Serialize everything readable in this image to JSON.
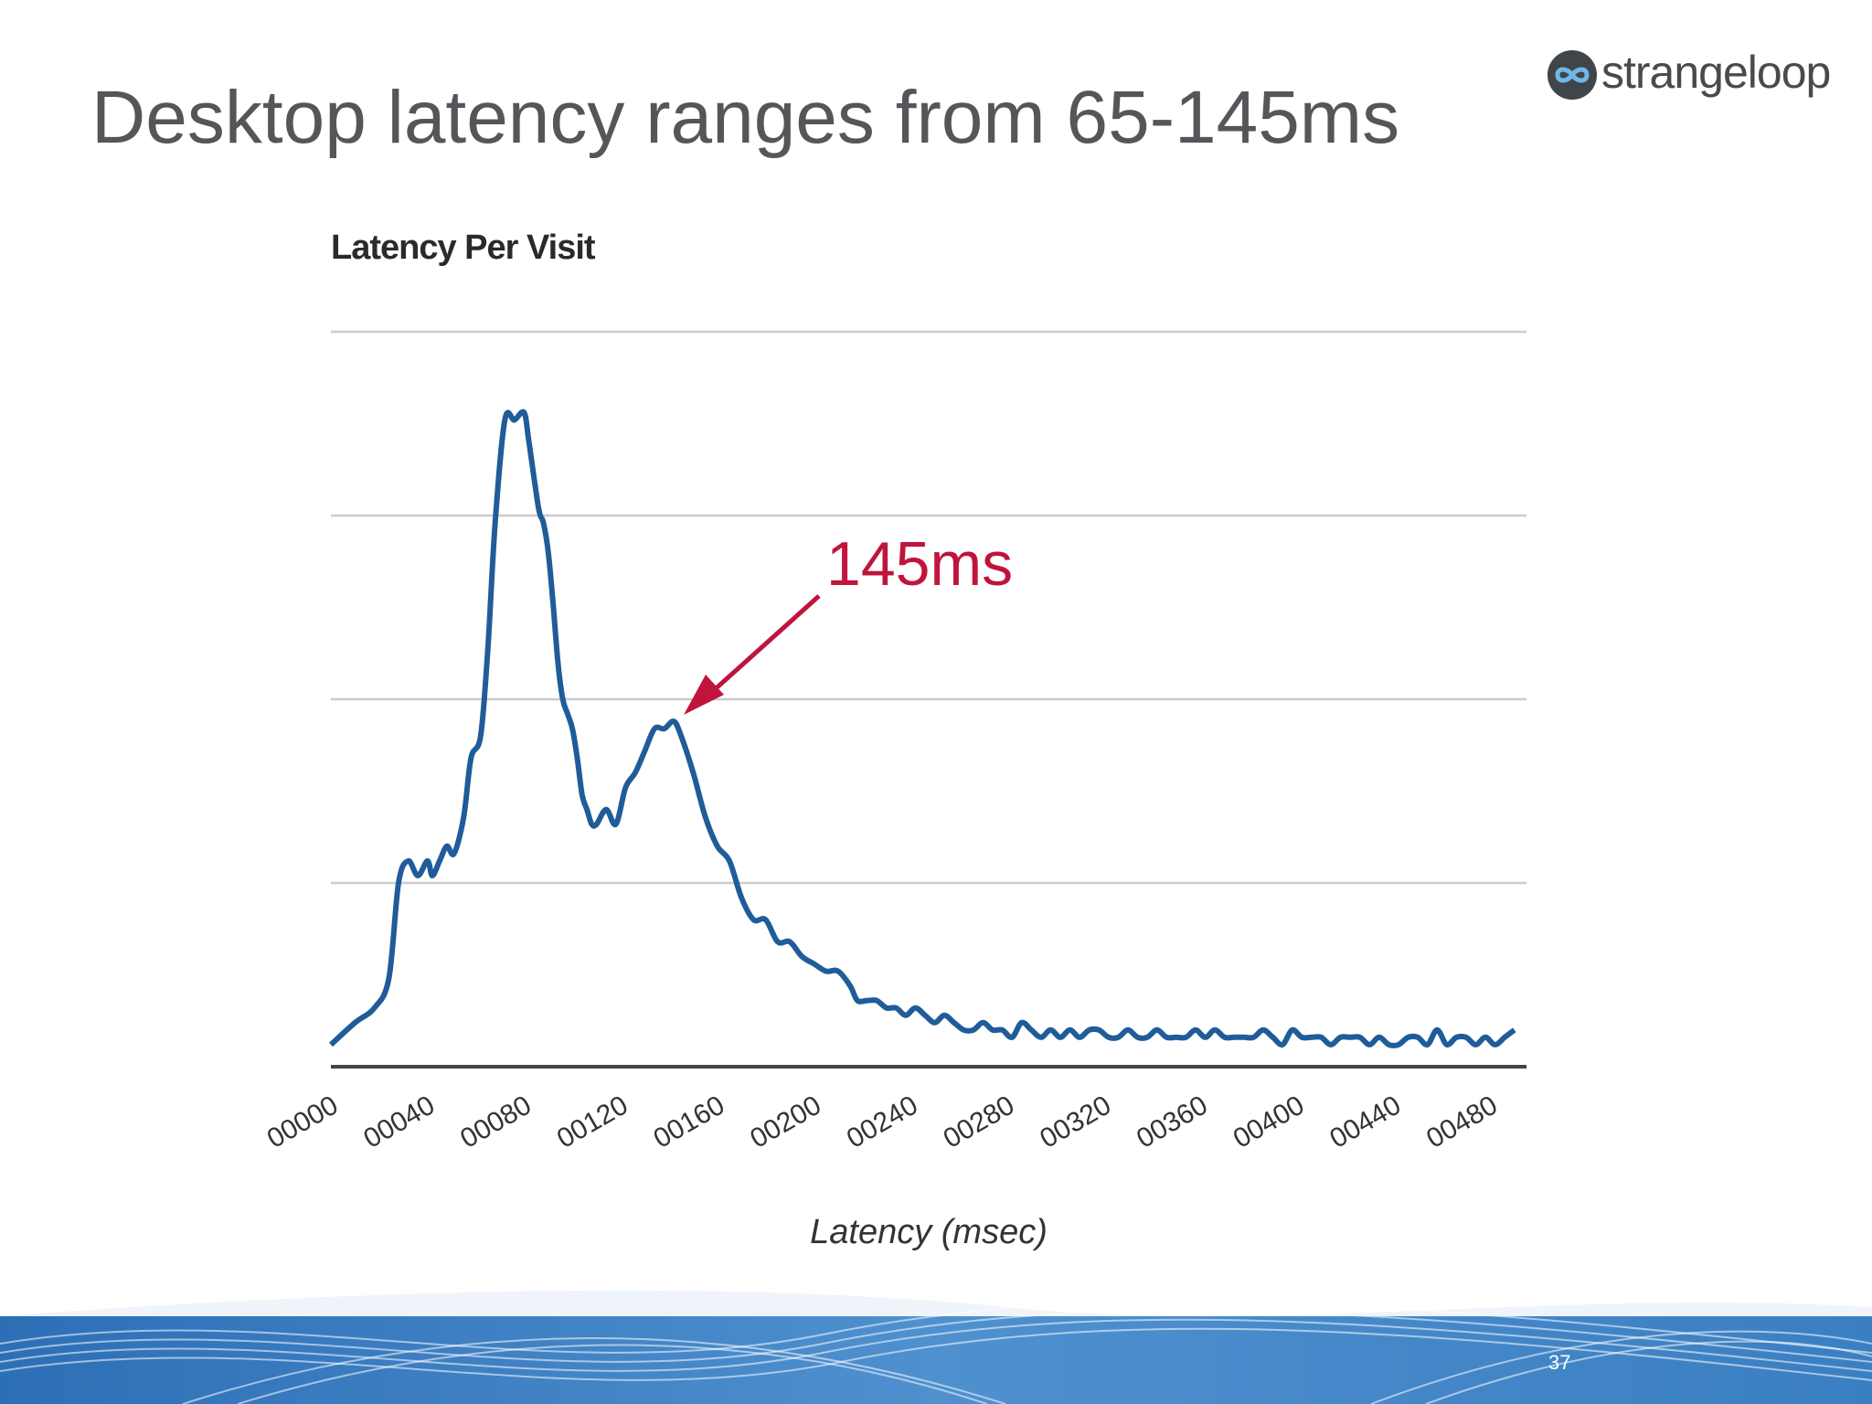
{
  "slide": {
    "title": "Desktop latency ranges from 65-145ms",
    "page_number": "37",
    "logo_text": "strangeloop"
  },
  "chart_data": {
    "type": "line",
    "title": "Latency Per Visit",
    "xlabel": "Latency (msec)",
    "ylabel": "",
    "xlim": [
      0,
      495
    ],
    "ylim": [
      0,
      100
    ],
    "x_ticks": [
      "00000",
      "00040",
      "00080",
      "00120",
      "00160",
      "00200",
      "00240",
      "00280",
      "00320",
      "00360",
      "00400",
      "00440",
      "00480"
    ],
    "x_tick_values": [
      0,
      40,
      80,
      120,
      160,
      200,
      240,
      280,
      320,
      360,
      400,
      440,
      480
    ],
    "y_gridlines": [
      0,
      25,
      50,
      75,
      100
    ],
    "grid": true,
    "line_color": "#1f5c99",
    "series": [
      {
        "x": [
          0,
          10,
          18,
          24,
          28,
          32,
          36,
          40,
          42,
          45,
          48,
          51,
          55,
          58,
          62,
          65,
          68,
          72,
          76,
          80,
          82,
          86,
          88,
          90,
          92,
          94,
          96,
          98,
          100,
          102,
          104,
          106,
          108,
          110,
          114,
          118,
          122,
          126,
          130,
          134,
          138,
          142,
          145,
          150,
          155,
          160,
          165,
          170,
          175,
          180,
          185,
          190,
          195,
          200,
          205,
          210,
          215,
          218,
          222,
          226,
          230,
          234,
          238,
          242,
          246,
          250,
          254,
          258,
          262,
          266,
          270,
          274,
          278,
          282,
          286,
          290,
          294,
          298,
          302,
          306,
          310,
          314,
          318,
          322,
          326,
          330,
          334,
          338,
          342,
          346,
          350,
          354,
          358,
          362,
          366,
          370,
          374,
          378,
          382,
          386,
          390,
          394,
          398,
          402,
          406,
          410,
          414,
          418,
          422,
          426,
          430,
          434,
          438,
          442,
          446,
          450,
          454,
          458,
          462,
          466,
          470,
          474,
          478,
          482,
          486,
          490
        ],
        "y": [
          3,
          6,
          8,
          12,
          25,
          28,
          26,
          28,
          26,
          28,
          30,
          29,
          34,
          42,
          45,
          57,
          74,
          88,
          88,
          89,
          85,
          76,
          74,
          70,
          63,
          55,
          50,
          48,
          46,
          42,
          37,
          35,
          33,
          33,
          35,
          33,
          38,
          40,
          43,
          46,
          46,
          47,
          45,
          40,
          34,
          30,
          28,
          23,
          20,
          20,
          17,
          17,
          15,
          14,
          13,
          13,
          11,
          9,
          9,
          9,
          8,
          8,
          7,
          8,
          7,
          6,
          7,
          6,
          5,
          5,
          6,
          5,
          5,
          4,
          6,
          5,
          4,
          5,
          4,
          5,
          4,
          5,
          5,
          4,
          4,
          5,
          4,
          4,
          5,
          4,
          4,
          4,
          5,
          4,
          5,
          4,
          4,
          4,
          4,
          5,
          4,
          3,
          5,
          4,
          4,
          4,
          3,
          4,
          4,
          4,
          3,
          4,
          3,
          3,
          4,
          4,
          3,
          5,
          3,
          4,
          4,
          3,
          4,
          3,
          4,
          5
        ]
      }
    ],
    "annotations": [
      {
        "text": "145ms",
        "color": "#c0143c",
        "points_to_x": 145
      }
    ]
  }
}
